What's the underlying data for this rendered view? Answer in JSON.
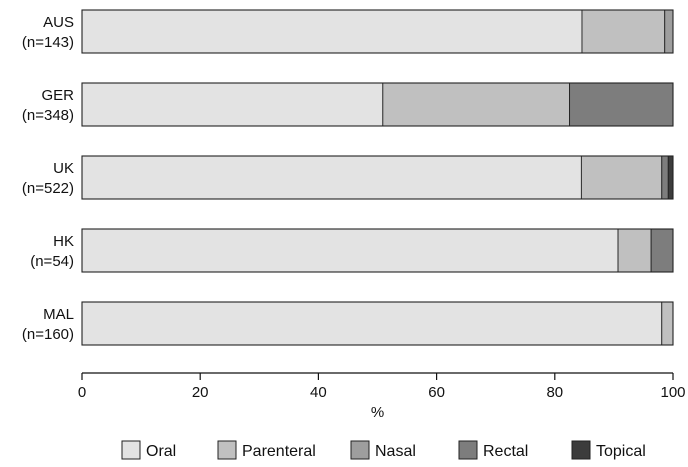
{
  "chart_data": {
    "type": "bar",
    "orientation": "horizontal",
    "stacked": true,
    "categories": [
      [
        "AUS",
        "(n=143)"
      ],
      [
        "GER",
        "(n=348)"
      ],
      [
        "UK",
        "(n=522)"
      ],
      [
        "HK",
        "(n=54)"
      ],
      [
        "MAL",
        "(n=160)"
      ]
    ],
    "series": [
      {
        "name": "Oral",
        "color": "#e3e3e3",
        "values": [
          84.6,
          50.9,
          84.5,
          90.7,
          98.1
        ]
      },
      {
        "name": "Parenteral",
        "color": "#c0c0c0",
        "values": [
          14.0,
          31.6,
          13.6,
          5.6,
          1.9
        ]
      },
      {
        "name": "Nasal",
        "color": "#9e9e9e",
        "values": [
          1.4,
          0.0,
          0.0,
          0.0,
          0.0
        ]
      },
      {
        "name": "Rectal",
        "color": "#7d7d7d",
        "values": [
          0.0,
          17.5,
          1.1,
          3.7,
          0.0
        ]
      },
      {
        "name": "Topical",
        "color": "#3c3c3c",
        "values": [
          0.0,
          0.0,
          0.8,
          0.0,
          0.0
        ]
      }
    ],
    "xlabel": "%",
    "ylabel": "",
    "xlim": [
      0,
      100
    ],
    "xticks": [
      "0",
      "20",
      "40",
      "60",
      "80",
      "100"
    ],
    "legend_position": "bottom",
    "grid": false
  }
}
